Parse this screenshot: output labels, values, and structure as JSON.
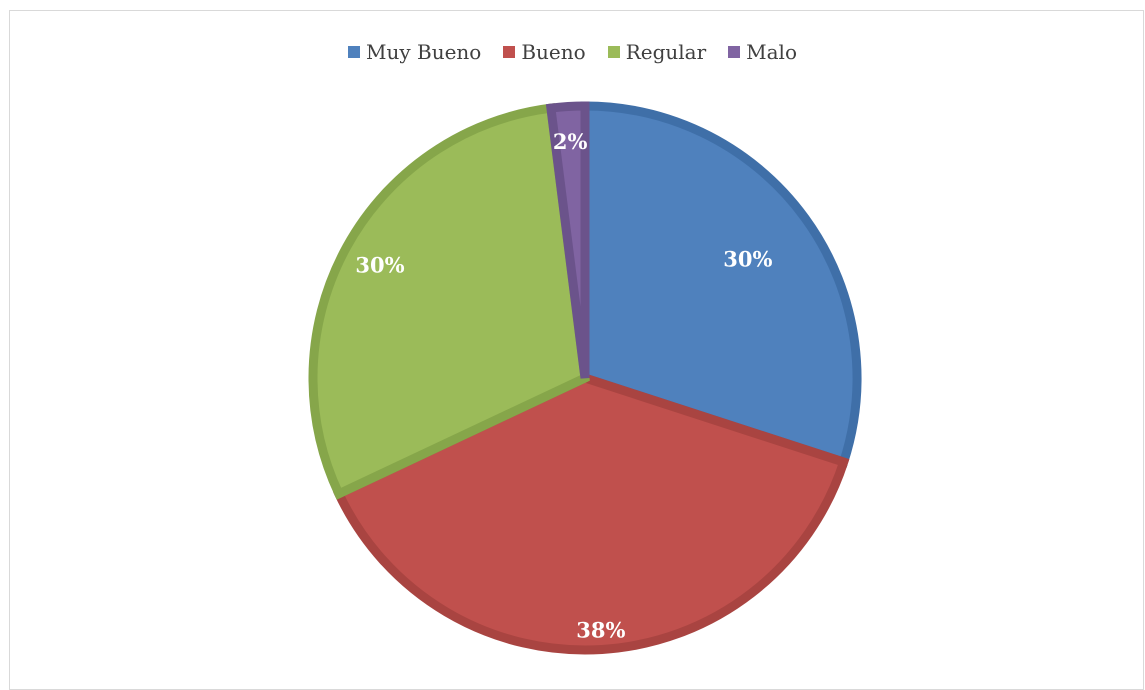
{
  "chart_data": {
    "type": "pie",
    "title": "",
    "legend_position": "top",
    "categories": [
      "Muy Bueno",
      "Bueno",
      "Regular",
      "Malo"
    ],
    "values": [
      30,
      38,
      30,
      2
    ],
    "data_labels": [
      "30%",
      "38%",
      "30%",
      "2%"
    ],
    "colors": [
      "#4f81bd",
      "#c0504d",
      "#9bbb59",
      "#8064a2"
    ],
    "border_colors": [
      "#3f6fa8",
      "#a94441",
      "#86a64a",
      "#6b538b"
    ],
    "series": [
      {
        "values": [
          30,
          38,
          30,
          2
        ]
      }
    ]
  }
}
